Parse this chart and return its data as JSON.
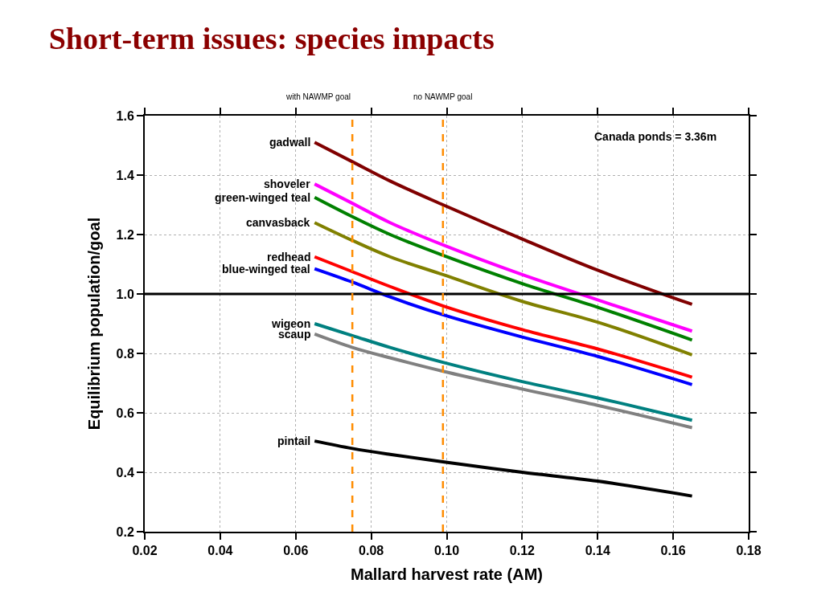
{
  "chart_data": {
    "type": "line",
    "title": "Short-term issues: species impacts",
    "xlabel": "Mallard harvest rate (AM)",
    "ylabel": "Equilibrium population/goal",
    "x": [
      0.065,
      0.075,
      0.085,
      0.099,
      0.12,
      0.14,
      0.165
    ],
    "series": [
      {
        "name": "gadwall",
        "color": "#800000",
        "values": [
          1.51,
          1.445,
          1.38,
          1.3,
          1.185,
          1.08,
          0.965
        ]
      },
      {
        "name": "shoveler",
        "color": "#ff00ff",
        "values": [
          1.37,
          1.305,
          1.24,
          1.165,
          1.065,
          0.98,
          0.875
        ]
      },
      {
        "name": "green-winged teal",
        "color": "#008000",
        "values": [
          1.325,
          1.26,
          1.2,
          1.13,
          1.035,
          0.955,
          0.845
        ]
      },
      {
        "name": "canvasback",
        "color": "#808000",
        "values": [
          1.24,
          1.18,
          1.125,
          1.065,
          0.975,
          0.905,
          0.795
        ]
      },
      {
        "name": "redhead",
        "color": "#ff0000",
        "values": [
          1.125,
          1.075,
          1.025,
          0.96,
          0.88,
          0.815,
          0.72
        ]
      },
      {
        "name": "blue-winged teal",
        "color": "#0000ff",
        "values": [
          1.085,
          1.04,
          0.99,
          0.93,
          0.855,
          0.79,
          0.695
        ]
      },
      {
        "name": "wigeon",
        "color": "#008080",
        "values": [
          0.9,
          0.86,
          0.82,
          0.77,
          0.705,
          0.65,
          0.575
        ]
      },
      {
        "name": "scaup",
        "color": "#808080",
        "values": [
          0.865,
          0.82,
          0.785,
          0.74,
          0.68,
          0.625,
          0.55
        ]
      },
      {
        "name": "pintail",
        "color": "#000000",
        "values": [
          0.505,
          0.48,
          0.46,
          0.435,
          0.4,
          0.37,
          0.32
        ]
      }
    ],
    "ref_lines": [
      {
        "axis": "y",
        "value": 1.0,
        "color": "#000000",
        "line_style": "solid"
      },
      {
        "axis": "x",
        "value": 0.075,
        "label": "with NAWMP goal",
        "color": "#ff8c00",
        "line_style": "dashed"
      },
      {
        "axis": "x",
        "value": 0.099,
        "label": "no NAWMP goal",
        "color": "#ff8c00",
        "line_style": "dashed"
      }
    ],
    "annotations": [
      "Canada ponds = 3.36m"
    ],
    "xlim": [
      0.02,
      0.18
    ],
    "ylim": [
      0.2,
      1.6
    ],
    "xticks": [
      0.02,
      0.04,
      0.06,
      0.08,
      {
        "value": 0.1,
        "label": "0.10"
      },
      0.12,
      0.14,
      0.16,
      0.18
    ],
    "yticks": [
      0.2,
      0.4,
      0.6,
      0.8,
      {
        "value": 1.0,
        "label": "1.0"
      },
      1.2,
      1.4,
      1.6
    ],
    "grid": true,
    "legend": false,
    "marker": "none",
    "line_style": "solid"
  }
}
